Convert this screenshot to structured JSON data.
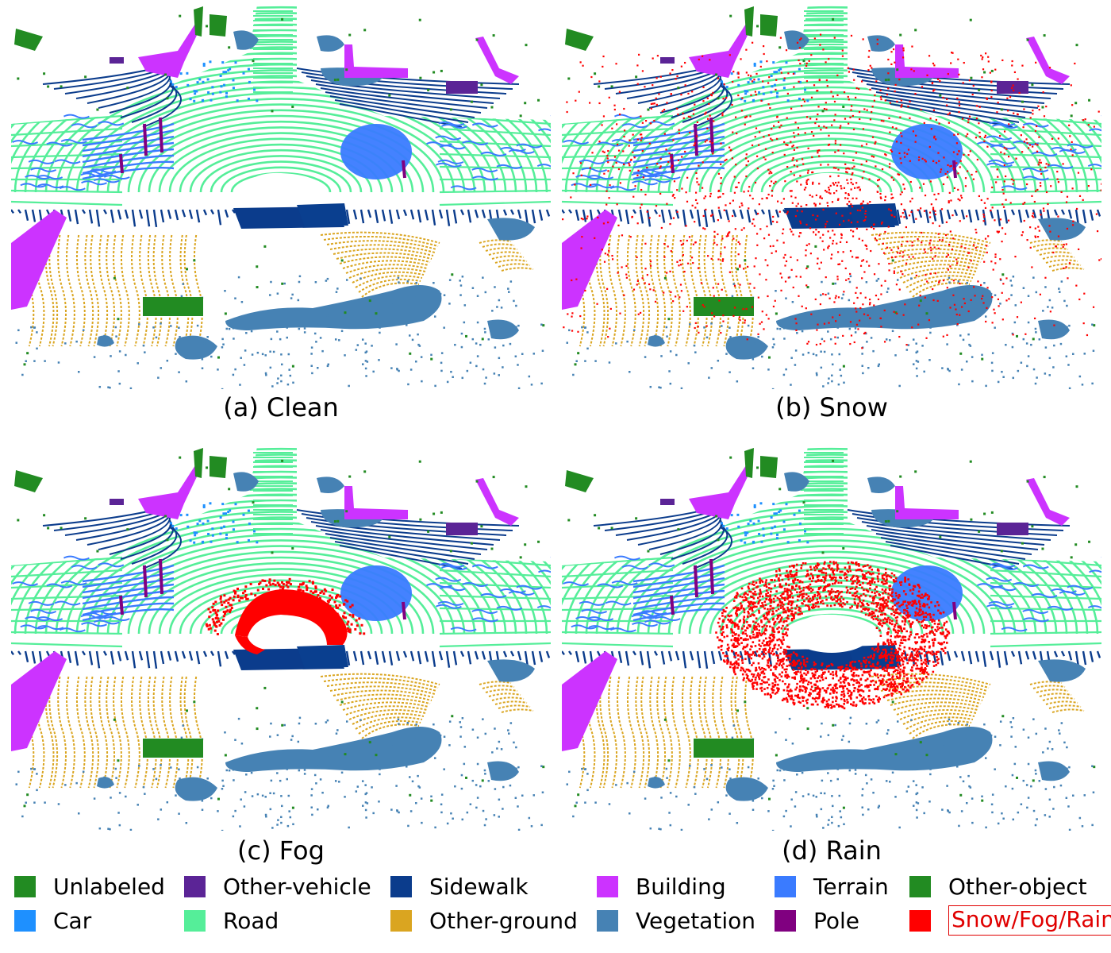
{
  "panels": [
    {
      "caption": "(a) Clean",
      "noise": "none"
    },
    {
      "caption": "(b) Snow",
      "noise": "snow"
    },
    {
      "caption": "(c) Fog",
      "noise": "fog"
    },
    {
      "caption": "(d) Rain",
      "noise": "rain"
    }
  ],
  "legend": [
    {
      "label": "Unlabeled",
      "color": "#228B22"
    },
    {
      "label": "Other-vehicle",
      "color": "#5B2496"
    },
    {
      "label": "Sidewalk",
      "color": "#0B3C8C"
    },
    {
      "label": "Building",
      "color": "#CC33FF"
    },
    {
      "label": "Terrain",
      "color": "#3A7BFF"
    },
    {
      "label": "Other-object",
      "color": "#228B22"
    },
    {
      "label": "Car",
      "color": "#1E90FF"
    },
    {
      "label": "Road",
      "color": "#55EE99"
    },
    {
      "label": "Other-ground",
      "color": "#DAA520"
    },
    {
      "label": "Vegetation",
      "color": "#4682B4"
    },
    {
      "label": "Pole",
      "color": "#800080"
    },
    {
      "label": "Snow/Fog/Rain",
      "color": "#FF0000"
    }
  ]
}
